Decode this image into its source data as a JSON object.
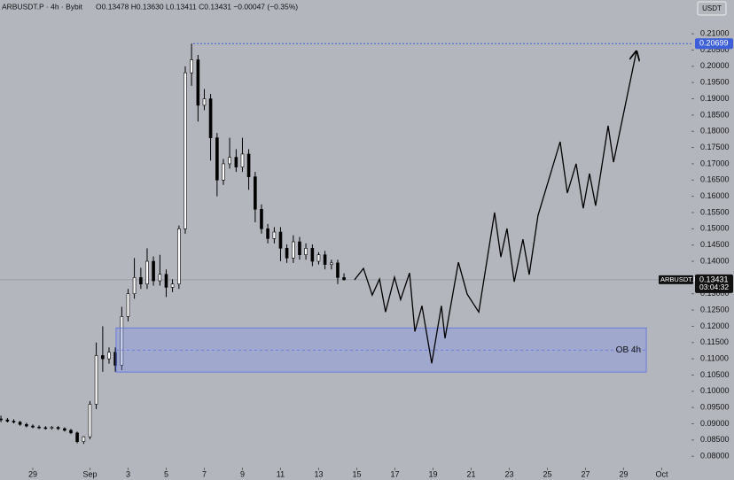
{
  "chart_data": {
    "type": "candlestick",
    "header": {
      "symbol": "ARBUSDT.P · 4h · Bybit",
      "ohlc": "O0.13478 H0.13630 L0.13411 C0.13431 −0.00047 (−0.35%)"
    },
    "currency": "USDT",
    "symbol_label": "ARBUSDT.P",
    "last_price": 0.13431,
    "countdown": "03:04:32",
    "high_line": 0.20699,
    "x": [
      -1.67,
      -1.33,
      -1,
      -0.67,
      -0.33,
      0,
      0.33,
      0.67,
      1,
      1.33,
      1.67,
      2,
      2.33,
      2.67,
      3,
      3.33,
      3.67,
      4,
      4.33,
      4.67,
      5,
      5.33,
      5.67,
      6,
      6.33,
      6.67,
      7,
      7.33,
      7.67,
      8,
      8.33,
      8.67,
      9,
      9.33,
      9.67,
      10,
      10.33,
      10.67,
      11,
      11.33,
      11.67,
      12,
      12.33,
      12.67,
      13,
      13.33,
      13.67,
      14,
      14.33,
      14.67,
      15,
      15.33,
      15.67,
      16,
      16.33
    ],
    "open": [
      0.0915,
      0.0912,
      0.0908,
      0.0905,
      0.0898,
      0.0893,
      0.089,
      0.0888,
      0.0886,
      0.0889,
      0.0885,
      0.088,
      0.0872,
      0.0845,
      0.086,
      0.096,
      0.111,
      0.11,
      0.112,
      0.108,
      0.123,
      0.13,
      0.135,
      0.133,
      0.14,
      0.134,
      0.136,
      0.132,
      0.133,
      0.15,
      0.198,
      0.202,
      0.188,
      0.19,
      0.178,
      0.165,
      0.17,
      0.172,
      0.169,
      0.173,
      0.166,
      0.156,
      0.15,
      0.147,
      0.149,
      0.144,
      0.141,
      0.146,
      0.142,
      0.144,
      0.14,
      0.142,
      0.139,
      0.1395,
      0.135
    ],
    "high": [
      0.0925,
      0.0918,
      0.0914,
      0.0909,
      0.0903,
      0.0898,
      0.0895,
      0.0893,
      0.0893,
      0.0893,
      0.0889,
      0.0884,
      0.0876,
      0.0862,
      0.097,
      0.115,
      0.12,
      0.1135,
      0.1135,
      0.126,
      0.1315,
      0.141,
      0.138,
      0.144,
      0.1415,
      0.142,
      0.1375,
      0.1345,
      0.151,
      0.2,
      0.207,
      0.2035,
      0.193,
      0.1915,
      0.1795,
      0.1715,
      0.178,
      0.1745,
      0.178,
      0.1745,
      0.1675,
      0.1575,
      0.1515,
      0.1505,
      0.1505,
      0.1452,
      0.148,
      0.1475,
      0.1455,
      0.1452,
      0.1428,
      0.1432,
      0.1405,
      0.1405,
      0.1363
    ],
    "low": [
      0.0905,
      0.0904,
      0.0901,
      0.0894,
      0.0889,
      0.0886,
      0.0884,
      0.0882,
      0.0882,
      0.0881,
      0.0876,
      0.0868,
      0.084,
      0.0838,
      0.0852,
      0.0945,
      0.106,
      0.1085,
      0.106,
      0.1065,
      0.1215,
      0.1285,
      0.1315,
      0.1315,
      0.1325,
      0.1325,
      0.129,
      0.1305,
      0.1315,
      0.1485,
      0.194,
      0.183,
      0.1865,
      0.171,
      0.16,
      0.1635,
      0.1685,
      0.1675,
      0.1675,
      0.162,
      0.152,
      0.1485,
      0.1455,
      0.1455,
      0.14,
      0.1395,
      0.1395,
      0.1405,
      0.1405,
      0.1385,
      0.139,
      0.1375,
      0.1375,
      0.133,
      0.1341
    ],
    "close": [
      0.0912,
      0.0908,
      0.0905,
      0.0898,
      0.0893,
      0.089,
      0.0888,
      0.0886,
      0.0889,
      0.0885,
      0.088,
      0.0872,
      0.0845,
      0.086,
      0.096,
      0.111,
      0.11,
      0.112,
      0.108,
      0.123,
      0.13,
      0.135,
      0.133,
      0.14,
      0.134,
      0.136,
      0.132,
      0.133,
      0.15,
      0.198,
      0.202,
      0.188,
      0.19,
      0.178,
      0.165,
      0.17,
      0.172,
      0.169,
      0.173,
      0.166,
      0.156,
      0.15,
      0.147,
      0.149,
      0.144,
      0.141,
      0.146,
      0.142,
      0.144,
      0.14,
      0.142,
      0.139,
      0.1395,
      0.135,
      0.13431
    ],
    "projection": {
      "x": [
        16.88,
        17.35,
        17.81,
        18.19,
        18.51,
        18.98,
        19.3,
        19.77,
        20.05,
        20.42,
        20.93,
        21.44,
        21.63,
        22.33,
        22.79,
        23.4,
        24.23,
        24.56,
        24.88,
        25.26,
        25.72,
        26.05,
        26.51,
        27.67,
        28.05,
        28.51,
        28.88,
        29.21,
        29.53,
        30.19,
        30.47,
        31.67
      ],
      "y": [
        0.1343,
        0.1378,
        0.1296,
        0.1345,
        0.1244,
        0.1351,
        0.1282,
        0.1364,
        0.1184,
        0.1263,
        0.1086,
        0.1263,
        0.1163,
        0.1397,
        0.1299,
        0.1244,
        0.155,
        0.1413,
        0.1501,
        0.1337,
        0.1468,
        0.1359,
        0.1541,
        0.1768,
        0.161,
        0.17,
        0.1563,
        0.167,
        0.1571,
        0.1817,
        0.1705,
        0.2046
      ]
    },
    "zone": {
      "label": "OB 4h",
      "x": [
        4.37,
        32.19
      ],
      "y": [
        0.1059,
        0.1195
      ],
      "mid": 0.1127
    },
    "xlim": [
      -1.72,
      34.56
    ],
    "ylim": [
      0.0727,
      0.2204
    ],
    "xticks": [
      {
        "value": 0,
        "label": "29"
      },
      {
        "value": 3,
        "label": "Sep"
      },
      {
        "value": 5,
        "label": "3"
      },
      {
        "value": 7,
        "label": "5"
      },
      {
        "value": 9,
        "label": "7"
      },
      {
        "value": 11,
        "label": "9"
      },
      {
        "value": 13,
        "label": "11"
      },
      {
        "value": 15,
        "label": "13"
      },
      {
        "value": 17,
        "label": "15"
      },
      {
        "value": 19,
        "label": "17"
      },
      {
        "value": 21,
        "label": "19"
      },
      {
        "value": 23,
        "label": "21"
      },
      {
        "value": 25,
        "label": "23"
      },
      {
        "value": 27,
        "label": "25"
      },
      {
        "value": 29,
        "label": "27"
      },
      {
        "value": 31,
        "label": "29"
      },
      {
        "value": 33,
        "label": "Oct"
      }
    ],
    "yticks": [
      {
        "value": 0.08,
        "label": "0.08000"
      },
      {
        "value": 0.085,
        "label": "0.08500"
      },
      {
        "value": 0.09,
        "label": "0.09000"
      },
      {
        "value": 0.095,
        "label": "0.09500"
      },
      {
        "value": 0.1,
        "label": "0.10000"
      },
      {
        "value": 0.105,
        "label": "0.10500"
      },
      {
        "value": 0.11,
        "label": "0.11000"
      },
      {
        "value": 0.115,
        "label": "0.11500"
      },
      {
        "value": 0.12,
        "label": "0.12000"
      },
      {
        "value": 0.125,
        "label": "0.12500"
      },
      {
        "value": 0.13,
        "label": "0.13000"
      },
      {
        "value": 0.14,
        "label": "0.14000"
      },
      {
        "value": 0.145,
        "label": "0.14500"
      },
      {
        "value": 0.15,
        "label": "0.15000"
      },
      {
        "value": 0.155,
        "label": "0.15500"
      },
      {
        "value": 0.16,
        "label": "0.16000"
      },
      {
        "value": 0.165,
        "label": "0.16500"
      },
      {
        "value": 0.17,
        "label": "0.17000"
      },
      {
        "value": 0.175,
        "label": "0.17500"
      },
      {
        "value": 0.18,
        "label": "0.18000"
      },
      {
        "value": 0.185,
        "label": "0.18500"
      },
      {
        "value": 0.19,
        "label": "0.19000"
      },
      {
        "value": 0.195,
        "label": "0.19500"
      },
      {
        "value": 0.2,
        "label": "0.20000"
      },
      {
        "value": 0.205,
        "label": "0.20500"
      },
      {
        "value": 0.21,
        "label": "0.21000"
      }
    ],
    "colors": {
      "up": "#ffffff",
      "down": "#000000",
      "outline": "#000000",
      "zone_fill": "rgba(120,140,235,0.32)",
      "zone_edge": "#5a6fe0",
      "high_line": "#3d5fd9",
      "projection": "#000000"
    }
  }
}
